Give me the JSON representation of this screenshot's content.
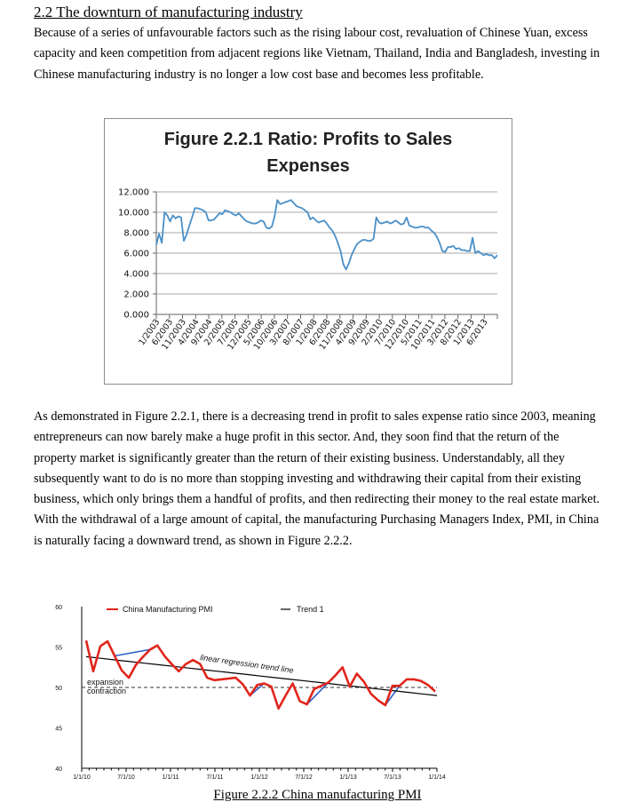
{
  "section": {
    "heading": "2.2 The downturn of manufacturing industry",
    "para1": "Because of a series of unfavourable factors such as the rising labour cost, revaluation of Chinese Yuan, excess capacity and keen competition from adjacent regions like Vietnam, Thailand, India and Bangladesh, investing in Chinese manufacturing industry is no longer a low cost base and becomes less profitable.",
    "para2": "As demonstrated in Figure 2.2.1, there is a decreasing trend in profit to sales expense ratio since 2003, meaning entrepreneurs can now barely make a huge profit in this sector. And, they soon find that the return of the property market is significantly greater than the return of their existing business. Understandably, all they subsequently want to do is no more than stopping investing and withdrawing their capital from their existing business, which only brings them a handful of profits, and then redirecting their money to the real estate market. With the withdrawal of a large amount of capital, the manufacturing Purchasing Managers Index, PMI, in China is naturally facing a downward trend, as shown in Figure 2.2.2.",
    "caption2": "Figure 2.2.2 China manufacturing PMI"
  },
  "colors": {
    "line1": "#4a90c8",
    "pmi": "#e0261c",
    "trend": "#000000",
    "grid": "#aaaaaa"
  },
  "chart_data": [
    {
      "type": "line",
      "title": "Figure 2.2.1 Ratio: Profits to Sales Expenses",
      "ytick_labels": [
        "0.000",
        "2.000",
        "4.000",
        "6.000",
        "8.000",
        "10.000",
        "12.000"
      ],
      "ylim": [
        0,
        12
      ],
      "grid": true,
      "xtick_labels": [
        "1/2003",
        "6/2003",
        "11/2003",
        "4/2004",
        "9/2004",
        "2/2005",
        "7/2005",
        "12/2005",
        "5/2006",
        "10/2006",
        "3/2007",
        "8/2007",
        "1/2008",
        "6/2008",
        "11/2008",
        "4/2009",
        "9/2009",
        "2/2010",
        "7/2010",
        "12/2010",
        "5/2011",
        "10/2011",
        "3/2012",
        "8/2012",
        "1/2013",
        "6/2013"
      ],
      "series": [
        {
          "values": [
            6.8,
            7.9,
            7.0,
            10.0,
            9.7,
            9.1,
            9.7,
            9.4,
            9.6,
            9.5,
            7.2,
            7.8,
            8.7,
            9.5,
            10.4,
            10.4,
            10.3,
            10.2,
            10.0,
            9.2,
            9.2,
            9.3,
            9.6,
            9.9,
            9.8,
            10.2,
            10.1,
            10.0,
            9.8,
            9.7,
            9.9,
            9.6,
            9.3,
            9.1,
            9.0,
            8.9,
            8.9,
            9.0,
            9.2,
            9.1,
            8.5,
            8.4,
            8.6,
            9.6,
            11.2,
            10.8,
            10.9,
            11.0,
            11.1,
            11.2,
            10.9,
            10.6,
            10.5,
            10.4,
            10.2,
            10.0,
            9.3,
            9.5,
            9.2,
            9.0,
            9.1,
            9.2,
            8.9,
            8.5,
            8.2,
            7.7,
            7.0,
            6.2,
            4.9,
            4.4,
            5.0,
            5.8,
            6.4,
            6.9,
            7.1,
            7.3,
            7.3,
            7.2,
            7.2,
            7.4,
            9.5,
            9.0,
            8.9,
            9.0,
            9.1,
            8.9,
            9.0,
            9.2,
            9.0,
            8.8,
            8.9,
            9.5,
            8.7,
            8.6,
            8.5,
            8.5,
            8.6,
            8.6,
            8.5,
            8.5,
            8.2,
            8.0,
            7.6,
            7.0,
            6.2,
            6.1,
            6.6,
            6.6,
            6.7,
            6.4,
            6.5,
            6.3,
            6.3,
            6.2,
            6.2,
            7.5,
            6.0,
            6.2,
            6.0,
            5.8,
            5.9,
            5.8,
            5.8,
            5.5,
            5.8
          ]
        }
      ]
    },
    {
      "type": "line",
      "title": "",
      "ylim": [
        40,
        60
      ],
      "ytick_labels": [
        "40",
        "45",
        "50",
        "55",
        "60"
      ],
      "xtick_labels": [
        "1/1/10",
        "7/1/10",
        "1/1/11",
        "7/1/11",
        "1/1/12",
        "7/1/12",
        "1/1/13",
        "7/1/13",
        "1/1/14"
      ],
      "legend": [
        "China Manufacturing PMI",
        "Trend 1"
      ],
      "annotations": [
        "linear regression trend line",
        "expansion",
        "contraction"
      ],
      "series": [
        {
          "name": "China Manufacturing PMI",
          "values": [
            55.8,
            52.0,
            55.1,
            55.7,
            53.9,
            52.1,
            51.2,
            52.8,
            53.8,
            54.7,
            55.2,
            53.9,
            52.9,
            52.0,
            52.9,
            53.4,
            52.9,
            51.2,
            50.9,
            51.0,
            51.1,
            51.2,
            50.4,
            49.0,
            50.3,
            50.5,
            50.1,
            47.4,
            49.0,
            50.5,
            48.3,
            47.9,
            49.8,
            50.2,
            50.6,
            51.5,
            52.5,
            50.1,
            51.7,
            50.7,
            49.2,
            48.4,
            47.8,
            50.2,
            50.2,
            51.0,
            51.0,
            50.8,
            50.3,
            49.5
          ]
        },
        {
          "name": "Trend 1",
          "values": [
            53.8,
            53.6,
            53.4,
            53.2,
            53.0,
            52.8,
            52.6,
            52.4,
            52.2,
            52.0,
            51.8,
            51.6,
            51.4,
            51.2,
            51.0,
            50.8,
            50.6,
            50.4,
            50.2,
            50.0,
            49.8,
            49.6,
            49.4,
            49.2,
            49.0
          ]
        }
      ]
    }
  ]
}
